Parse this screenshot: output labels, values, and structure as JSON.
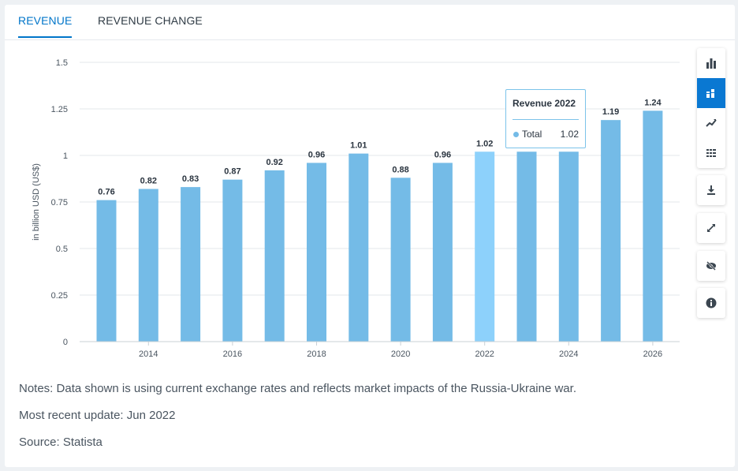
{
  "tabs": [
    {
      "label": "REVENUE",
      "active": true
    },
    {
      "label": "REVENUE CHANGE",
      "active": false
    }
  ],
  "chart_data": {
    "type": "bar",
    "categories": [
      "2013",
      "2014",
      "2015",
      "2016",
      "2017",
      "2018",
      "2019",
      "2020",
      "2021",
      "2022",
      "2023",
      "2024",
      "2025",
      "2026"
    ],
    "x_tick_labels": [
      "2014",
      "2016",
      "2018",
      "2020",
      "2022",
      "2024",
      "2026"
    ],
    "values": [
      0.76,
      0.82,
      0.83,
      0.87,
      0.92,
      0.96,
      1.01,
      0.88,
      0.96,
      1.02,
      null,
      null,
      1.19,
      1.24
    ],
    "data_labels": [
      "0.76",
      "0.82",
      "0.83",
      "0.87",
      "0.92",
      "0.96",
      "1.01",
      "0.88",
      "0.96",
      "1.02",
      "",
      "",
      "1.19",
      "1.24"
    ],
    "highlight_category": "2022",
    "ylabel": "in billion USD (US$)",
    "ylim": [
      0,
      1.5
    ],
    "y_ticks": [
      0,
      0.25,
      0.5,
      0.75,
      1,
      1.25,
      1.5
    ],
    "y_tick_labels": [
      "0",
      "0.25",
      "0.5",
      "0.75",
      "1",
      "1.25",
      "1.5"
    ],
    "grid": true,
    "bar_color": "#74bbe7",
    "highlight_color": "#8dd1fb"
  },
  "tooltip": {
    "title": "Revenue 2022",
    "series_label": "Total",
    "value": "1.02"
  },
  "toolbar_icons": [
    "bar-chart-icon",
    "stacked-bar-icon",
    "line-chart-icon",
    "table-icon",
    "download-icon",
    "expand-icon",
    "hide-icon",
    "info-icon"
  ],
  "notes": {
    "text": "Notes: Data shown is using current exchange rates and reflects market impacts of the Russia-Ukraine war.",
    "update": "Most recent update: Jun 2022",
    "source": "Source: Statista"
  }
}
